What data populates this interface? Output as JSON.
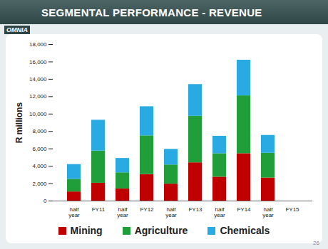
{
  "chart_data": {
    "type": "bar",
    "title": "SEGMENTAL PERFORMANCE - REVENUE",
    "stacked": true,
    "categories": [
      "half year",
      "FY11",
      "half year",
      "FY12",
      "half year",
      "FY13",
      "half year",
      "FY14",
      "half year",
      "FY15"
    ],
    "series": [
      {
        "name": "Mining",
        "color": "#c00000",
        "values": [
          1050,
          2050,
          1400,
          3050,
          1950,
          4400,
          2750,
          5450,
          2650,
          null
        ]
      },
      {
        "name": "Agriculture",
        "color": "#1f9e3a",
        "values": [
          1450,
          3700,
          1850,
          4450,
          2200,
          5350,
          2700,
          6650,
          2850,
          null
        ]
      },
      {
        "name": "Chemicals",
        "color": "#2aaae2",
        "values": [
          1700,
          3550,
          1650,
          3350,
          1800,
          3650,
          2000,
          4100,
          2050,
          null
        ]
      }
    ],
    "ylabel": "R millions",
    "ylim": [
      0,
      18000
    ],
    "yticks": [
      0,
      {
        "value": 2000,
        "label": "2,000"
      },
      {
        "value": 4000,
        "label": "4,000"
      },
      {
        "value": 6000,
        "label": "6,000"
      },
      {
        "value": 8000,
        "label": "8,000"
      },
      {
        "value": 10000,
        "label": "10,000"
      },
      {
        "value": 12000,
        "label": "12,000"
      },
      {
        "value": 14000,
        "label": "14,000"
      },
      {
        "value": 16000,
        "label": "16,000"
      },
      {
        "value": 18000,
        "label": "18,000"
      }
    ],
    "grid": false,
    "legend": "bottom",
    "data_labels": false
  },
  "logo": "OMNIA",
  "page_number": "26"
}
